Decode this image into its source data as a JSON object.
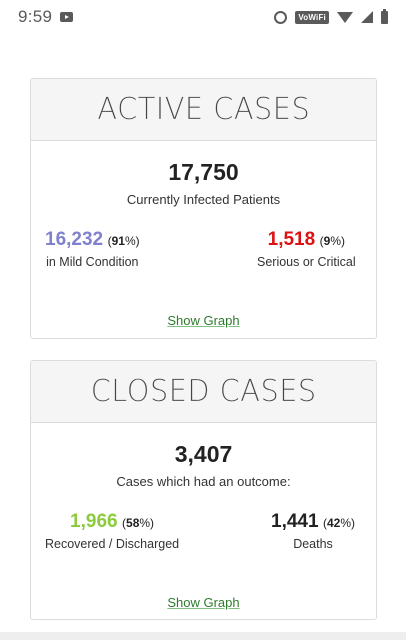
{
  "status_bar": {
    "time": "9:59",
    "vowifi": "VoWiFi"
  },
  "active_cases": {
    "title": "ACTIVE CASES",
    "total": "17,750",
    "total_label": "Currently Infected Patients",
    "mild": {
      "value": "16,232",
      "pct_prefix": "(",
      "pct": "91",
      "pct_suffix": "%)",
      "label": "in Mild Condition",
      "color": "#8080cc"
    },
    "serious": {
      "value": "1,518",
      "pct_prefix": "(",
      "pct": "9",
      "pct_suffix": "%)",
      "label": "Serious or Critical",
      "color": "#dd1111"
    },
    "show_graph": "Show Graph"
  },
  "closed_cases": {
    "title": "CLOSED CASES",
    "total": "3,407",
    "total_label": "Cases which had an outcome:",
    "recovered": {
      "value": "1,966",
      "pct_prefix": "(",
      "pct": "58",
      "pct_suffix": "%)",
      "label": "Recovered / Discharged",
      "color": "#8acc3a"
    },
    "deaths": {
      "value": "1,441",
      "pct_prefix": "(",
      "pct": "42",
      "pct_suffix": "%)",
      "label": "Deaths",
      "color": "#222222"
    },
    "show_graph": "Show Graph"
  }
}
